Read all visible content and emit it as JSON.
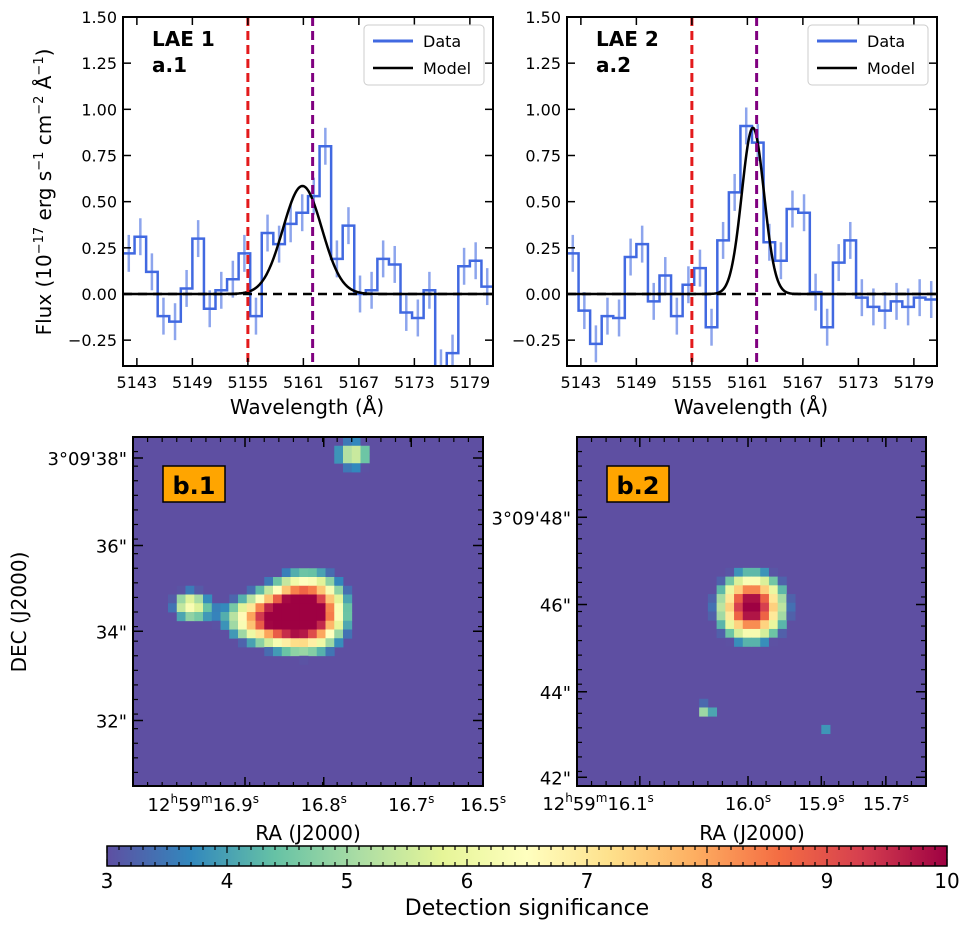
{
  "colors": {
    "data": "#4169e1",
    "model": "#000000",
    "vline1": "#e31a1c",
    "vline2": "#800080",
    "map_bg": "#5e4fa2",
    "label_box": "#ffa500",
    "colormap": [
      "#5e4fa2",
      "#3288bd",
      "#66c2a5",
      "#abdda4",
      "#e6f598",
      "#ffffbf",
      "#fee08b",
      "#fdae61",
      "#f46d43",
      "#d53e4f",
      "#9e0142"
    ]
  },
  "chart_data": [
    {
      "type": "line",
      "panel": "a.1",
      "title_line1": "LAE 1",
      "title_line2": "a.1",
      "xlabel": "Wavelength (Å)",
      "ylabel": "Flux (10⁻¹⁷ erg s⁻¹ cm⁻² Å⁻¹)",
      "xlim": [
        5141.5,
        5181.5
      ],
      "ylim": [
        -0.39,
        1.5
      ],
      "xticks": [
        5143,
        5149,
        5155,
        5161,
        5167,
        5173,
        5179
      ],
      "yticks": [
        -0.25,
        0.0,
        0.25,
        0.5,
        0.75,
        1.0,
        1.25,
        1.5
      ],
      "ytick_labels": [
        "−0.25",
        "0.00",
        "0.25",
        "0.50",
        "0.75",
        "1.00",
        "1.25",
        "1.50"
      ],
      "legend": [
        "Data",
        "Model"
      ],
      "vlines": [
        5155.0,
        5162.0
      ],
      "hline": 0,
      "model": {
        "amp": 0.585,
        "center": 5160.9,
        "sigma": 2.1
      },
      "series": [
        {
          "name": "Data",
          "x": [
            5141.5,
            5142.75,
            5144.0,
            5145.25,
            5146.5,
            5147.75,
            5149.0,
            5150.25,
            5151.5,
            5152.75,
            5154.0,
            5155.25,
            5156.5,
            5157.75,
            5159.0,
            5160.25,
            5161.5,
            5162.75,
            5164.0,
            5165.25,
            5166.5,
            5167.75,
            5169.0,
            5170.25,
            5171.5,
            5172.75,
            5174.0,
            5175.25,
            5176.5,
            5177.75,
            5179.0,
            5180.25
          ],
          "values": [
            0.22,
            0.31,
            0.12,
            -0.12,
            -0.15,
            0.03,
            0.3,
            -0.08,
            0.02,
            0.08,
            0.22,
            -0.12,
            0.33,
            0.27,
            0.38,
            0.44,
            0.53,
            0.8,
            0.19,
            0.37,
            0.0,
            0.02,
            0.19,
            0.16,
            -0.1,
            -0.13,
            0.02,
            -0.4,
            -0.32,
            0.15,
            0.18,
            0.04
          ],
          "errors": [
            0.1,
            0.1,
            0.1,
            0.1,
            0.1,
            0.1,
            0.1,
            0.1,
            0.1,
            0.1,
            0.1,
            0.1,
            0.1,
            0.1,
            0.1,
            0.1,
            0.1,
            0.1,
            0.1,
            0.1,
            0.1,
            0.1,
            0.1,
            0.1,
            0.1,
            0.1,
            0.1,
            0.1,
            0.1,
            0.1,
            0.1,
            0.1
          ]
        }
      ]
    },
    {
      "type": "line",
      "panel": "a.2",
      "title_line1": "LAE 2",
      "title_line2": "a.2",
      "xlabel": "Wavelength (Å)",
      "ylabel": "",
      "xlim": [
        5141.5,
        5181.5
      ],
      "ylim": [
        -0.39,
        1.5
      ],
      "xticks": [
        5143,
        5149,
        5155,
        5161,
        5167,
        5173,
        5179
      ],
      "yticks": [
        -0.25,
        0.0,
        0.25,
        0.5,
        0.75,
        1.0,
        1.25,
        1.5
      ],
      "ytick_labels": [
        "−0.25",
        "0.00",
        "0.25",
        "0.50",
        "0.75",
        "1.00",
        "1.25",
        "1.50"
      ],
      "legend": [
        "Data",
        "Model"
      ],
      "vlines": [
        5155.0,
        5162.0
      ],
      "hline": 0,
      "model": {
        "amp": 0.9,
        "center": 5161.6,
        "sigma": 1.2
      },
      "series": [
        {
          "name": "Data",
          "x": [
            5141.5,
            5142.75,
            5144.0,
            5145.25,
            5146.5,
            5147.75,
            5149.0,
            5150.25,
            5151.5,
            5152.75,
            5154.0,
            5155.25,
            5156.5,
            5157.75,
            5159.0,
            5160.25,
            5161.5,
            5162.75,
            5164.0,
            5165.25,
            5166.5,
            5167.75,
            5169.0,
            5170.25,
            5171.5,
            5172.75,
            5174.0,
            5175.25,
            5176.5,
            5177.75,
            5179.0,
            5180.25
          ],
          "values": [
            0.22,
            -0.09,
            -0.27,
            -0.12,
            -0.13,
            0.2,
            0.27,
            -0.04,
            0.1,
            -0.12,
            0.05,
            0.14,
            -0.18,
            0.29,
            0.55,
            0.91,
            0.82,
            0.28,
            0.18,
            0.46,
            0.44,
            0.01,
            -0.18,
            0.17,
            0.29,
            -0.02,
            -0.07,
            -0.09,
            -0.04,
            -0.07,
            -0.02,
            -0.03
          ],
          "errors": [
            0.1,
            0.1,
            0.1,
            0.1,
            0.1,
            0.1,
            0.1,
            0.1,
            0.1,
            0.1,
            0.1,
            0.1,
            0.1,
            0.1,
            0.1,
            0.1,
            0.1,
            0.1,
            0.1,
            0.1,
            0.1,
            0.1,
            0.1,
            0.1,
            0.1,
            0.1,
            0.1,
            0.1,
            0.1,
            0.1,
            0.1,
            0.1
          ]
        }
      ]
    },
    {
      "type": "heatmap",
      "panel": "b.1",
      "label": "b.1",
      "xlabel": "RA (J2000)",
      "ylabel": "DEC (J2000)",
      "xtick_labels": [
        {
          "h": "12",
          "hs": "h",
          "m": "59",
          "ms": "m",
          "s": "16.9",
          "ss": "s"
        },
        {
          "s": "16.8",
          "ss": "s"
        },
        {
          "s": "16.7",
          "ss": "s"
        },
        {
          "s": "16.5",
          "ss": "s"
        }
      ],
      "ytick_labels": [
        "3°09'38\"",
        "36\"",
        "34\"",
        "32\""
      ],
      "sources": [
        {
          "x": 0.5,
          "y": 0.5,
          "peak": 10.5,
          "sx": 0.085,
          "sy": 0.085
        },
        {
          "x": 0.36,
          "y": 0.52,
          "peak": 6.6,
          "sx": 0.09,
          "sy": 0.055
        },
        {
          "x": 0.16,
          "y": 0.48,
          "peak": 5.9,
          "sx": 0.045,
          "sy": 0.04
        },
        {
          "x": 0.63,
          "y": 0.05,
          "peak": 5.8,
          "sx": 0.05,
          "sy": 0.04
        }
      ],
      "zlim": [
        3,
        10
      ]
    },
    {
      "type": "heatmap",
      "panel": "b.2",
      "label": "b.2",
      "xlabel": "RA (J2000)",
      "ylabel": "",
      "xtick_labels": [
        {
          "h": "12",
          "hs": "h",
          "m": "59",
          "ms": "m",
          "s": "16.1",
          "ss": "s"
        },
        {
          "s": "16.0",
          "ss": "s"
        },
        {
          "s": "15.9",
          "ss": "s"
        },
        {
          "s": "15.7",
          "ss": "s"
        }
      ],
      "ytick_labels": [
        "3°09'48\"",
        "46\"",
        "44\"",
        "42\""
      ],
      "sources": [
        {
          "x": 0.5,
          "y": 0.487,
          "peak": 10.5,
          "sx": 0.075,
          "sy": 0.075
        },
        {
          "x": 0.37,
          "y": 0.785,
          "peak": 5.2,
          "sx": 0.025,
          "sy": 0.025
        },
        {
          "x": 0.71,
          "y": 0.83,
          "peak": 4.4,
          "sx": 0.025,
          "sy": 0.015
        }
      ],
      "zlim": [
        3,
        10
      ]
    },
    {
      "type": "colorbar",
      "label": "Detection significance",
      "range": [
        3,
        10
      ],
      "ticks": [
        "3",
        "4",
        "5",
        "6",
        "7",
        "8",
        "9",
        "10"
      ]
    }
  ]
}
